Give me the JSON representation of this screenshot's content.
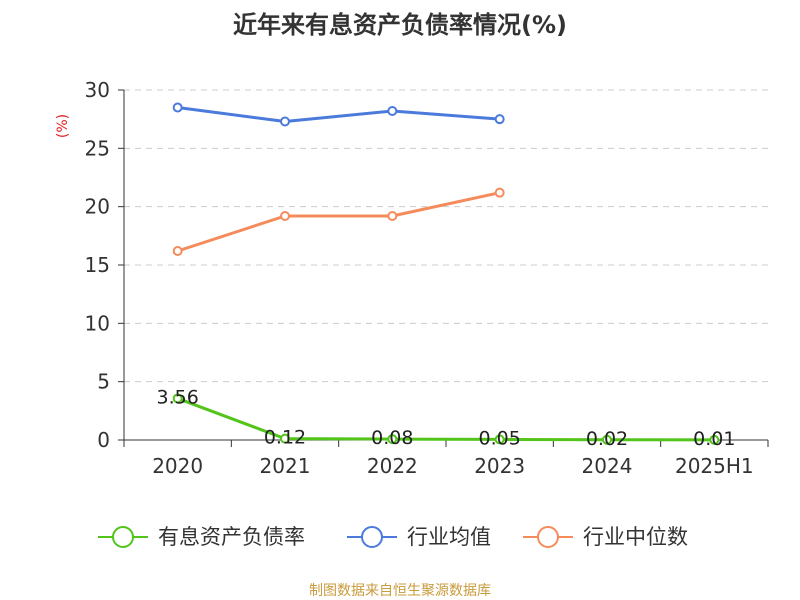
{
  "chart_data": {
    "type": "line",
    "title": "近年来有息资产负债率情况(%)",
    "ylabel": "(%)",
    "xlabel": "",
    "categories": [
      "2020",
      "2021",
      "2022",
      "2023",
      "2024",
      "2025H1"
    ],
    "ylim": [
      0,
      30
    ],
    "yticks": [
      0,
      5,
      10,
      15,
      20,
      25,
      30
    ],
    "grid": true,
    "legend_position": "bottom",
    "series": [
      {
        "name": "有息资产负债率",
        "color": "#52c41a",
        "values": [
          3.56,
          0.12,
          0.08,
          0.05,
          0.02,
          0.01
        ],
        "labels": [
          "3.56",
          "0.12",
          "0.08",
          "0.05",
          "0.02",
          "0.01"
        ]
      },
      {
        "name": "行业均值",
        "color": "#4a7bdc",
        "values": [
          28.5,
          27.3,
          28.2,
          27.5,
          null,
          null
        ]
      },
      {
        "name": "行业中位数",
        "color": "#f58b5b",
        "values": [
          16.2,
          19.2,
          19.2,
          21.2,
          null,
          null
        ]
      }
    ]
  },
  "source": "制图数据来自恒生聚源数据库"
}
